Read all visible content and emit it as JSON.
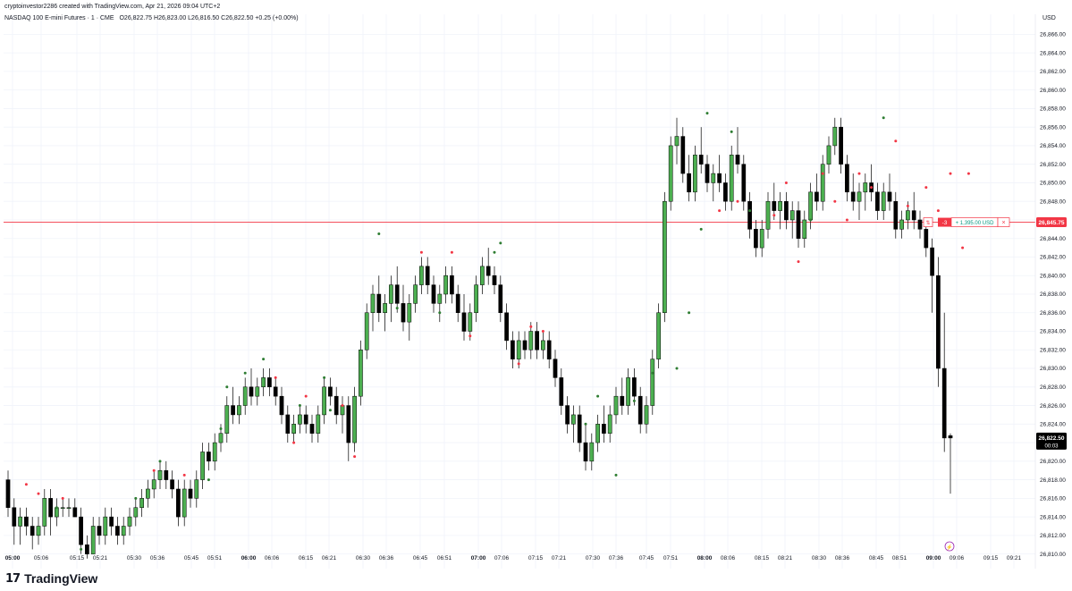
{
  "header": {
    "caption": "cryptoinvestor2286 created with TradingView.com, Apr 21, 2026 09:04 UTC+2",
    "instrument": "NASDAQ 100 E-mini Futures · 1 · CME",
    "ohlc": "O26,822.75 H26,823.00 L26,816.50 C26,822.50 +0.25 (+0.00%)",
    "currency": "USD"
  },
  "logo": {
    "mark": "17",
    "text": "TradingView"
  },
  "colors": {
    "up": "#4caf50",
    "down": "#000000",
    "level": "#f23645",
    "grid": "#f0f3fa",
    "marker_up": "#2e7d32",
    "marker_down": "#f23645"
  },
  "position": {
    "price": 26845.75,
    "price_label": "26,845.75",
    "qty": "-3",
    "lock_icon": "lock-icon",
    "pnl": "+ 1,395.00 USD",
    "close": "×"
  },
  "last_price": {
    "price": 26822.5,
    "label": "26,822.50",
    "countdown": "00:03"
  },
  "chart_data": {
    "type": "candlestick",
    "title": "NASDAQ 100 E-mini Futures · 1 · CME",
    "ylim": [
      26809,
      26867
    ],
    "y_ticks": [
      "26,810.00",
      "26,812.00",
      "26,814.00",
      "26,816.00",
      "26,818.00",
      "26,820.00",
      "26,822.00",
      "26,824.00",
      "26,826.00",
      "26,828.00",
      "26,830.00",
      "26,832.00",
      "26,834.00",
      "26,836.00",
      "26,838.00",
      "26,840.00",
      "26,842.00",
      "26,844.00",
      "26,846.00",
      "26,848.00",
      "26,850.00",
      "26,852.00",
      "26,854.00",
      "26,856.00",
      "26,858.00",
      "26,860.00",
      "26,862.00",
      "26,864.00",
      "26,866.00"
    ],
    "x_ticks": [
      "05:00",
      "05:06",
      "05:15",
      "05:21",
      "05:30",
      "05:36",
      "05:45",
      "05:51",
      "06:00",
      "06:06",
      "06:15",
      "06:21",
      "06:30",
      "06:36",
      "06:45",
      "06:51",
      "07:00",
      "07:06",
      "07:15",
      "07:21",
      "07:30",
      "07:36",
      "07:45",
      "07:51",
      "08:00",
      "08:06",
      "08:15",
      "08:21",
      "08:30",
      "08:36",
      "08:45",
      "08:51",
      "09:00",
      "09:06",
      "09:15",
      "09:21"
    ],
    "bold_x_ticks": [
      "05:00",
      "06:00",
      "07:00",
      "08:00",
      "09:00"
    ],
    "grid": true,
    "candles": [
      [
        26818,
        26819,
        26814,
        26815
      ],
      [
        26815,
        26816,
        26811,
        26813
      ],
      [
        26813,
        26815,
        26811,
        26814
      ],
      [
        26814,
        26815,
        26812,
        26813
      ],
      [
        26813,
        26814,
        26810.5,
        26812
      ],
      [
        26812,
        26814,
        26811,
        26813
      ],
      [
        26813,
        26817,
        26812,
        26816
      ],
      [
        26816,
        26817,
        26812,
        26814
      ],
      [
        26814,
        26816,
        26813,
        26815
      ],
      [
        26815,
        26816,
        26814,
        26815
      ],
      [
        26815,
        26816,
        26814,
        26815
      ],
      [
        26815,
        26816,
        26814,
        26814
      ],
      [
        26814,
        26815,
        26810,
        26811
      ],
      [
        26811,
        26812,
        26809.5,
        26810
      ],
      [
        26810,
        26814,
        26810,
        26813
      ],
      [
        26813,
        26814,
        26811,
        26812
      ],
      [
        26812,
        26815,
        26811,
        26814
      ],
      [
        26814,
        26815,
        26812,
        26813
      ],
      [
        26813,
        26814,
        26811,
        26812
      ],
      [
        26812,
        26814,
        26811,
        26813
      ],
      [
        26813,
        26815,
        26812,
        26814
      ],
      [
        26814,
        26816,
        26813,
        26815
      ],
      [
        26815,
        26817,
        26814,
        26816
      ],
      [
        26816,
        26818,
        26815,
        26817
      ],
      [
        26817,
        26819,
        26816,
        26818
      ],
      [
        26818,
        26820,
        26817,
        26819
      ],
      [
        26819,
        26820,
        26817,
        26818
      ],
      [
        26818,
        26819,
        26816,
        26817
      ],
      [
        26817,
        26818,
        26813,
        26814
      ],
      [
        26814,
        26818,
        26813,
        26817
      ],
      [
        26817,
        26818,
        26815,
        26816
      ],
      [
        26816,
        26819,
        26815,
        26818
      ],
      [
        26818,
        26822,
        26817,
        26821
      ],
      [
        26821,
        26822,
        26819,
        26820
      ],
      [
        26820,
        26823,
        26819,
        26822
      ],
      [
        26822,
        26824,
        26821,
        26823
      ],
      [
        26823,
        26827,
        26822,
        26826
      ],
      [
        26826,
        26828,
        26824,
        26825
      ],
      [
        26825,
        26827,
        26824,
        26826
      ],
      [
        26826,
        26829,
        26825,
        26828
      ],
      [
        26828,
        26830,
        26826,
        26827
      ],
      [
        26827,
        26829,
        26826,
        26828
      ],
      [
        26828,
        26830,
        26827,
        26829
      ],
      [
        26829,
        26830,
        26827,
        26828
      ],
      [
        26828,
        26829,
        26826,
        26827
      ],
      [
        26827,
        26828,
        26824,
        26825
      ],
      [
        26825,
        26826,
        26822,
        26823
      ],
      [
        26823,
        26825,
        26822,
        26824
      ],
      [
        26824,
        26826,
        26823,
        26825
      ],
      [
        26825,
        26826,
        26823,
        26824
      ],
      [
        26824,
        26825,
        26822,
        26823
      ],
      [
        26823,
        26826,
        26822,
        26825
      ],
      [
        26825,
        26829,
        26824,
        26828
      ],
      [
        26828,
        26829,
        26826,
        26827
      ],
      [
        26827,
        26828,
        26824,
        26825
      ],
      [
        26825,
        26827,
        26823,
        26826
      ],
      [
        26826,
        26827,
        26820,
        26822
      ],
      [
        26822,
        26828,
        26821,
        26827
      ],
      [
        26827,
        26833,
        26826,
        26832
      ],
      [
        26832,
        26837,
        26831,
        26836
      ],
      [
        26836,
        26839,
        26834,
        26838
      ],
      [
        26838,
        26840,
        26835,
        26836
      ],
      [
        26836,
        26838,
        26834,
        26837
      ],
      [
        26837,
        26840,
        26835,
        26839
      ],
      [
        26839,
        26841,
        26836,
        26837
      ],
      [
        26837,
        26839,
        26834,
        26835
      ],
      [
        26835,
        26838,
        26833,
        26837
      ],
      [
        26837,
        26840,
        26836,
        26839
      ],
      [
        26839,
        26842,
        26838,
        26841
      ],
      [
        26841,
        26842,
        26838,
        26839
      ],
      [
        26839,
        26840,
        26836,
        26837
      ],
      [
        26837,
        26839,
        26835,
        26838
      ],
      [
        26838,
        26841,
        26837,
        26840
      ],
      [
        26840,
        26841,
        26837,
        26838
      ],
      [
        26838,
        26839,
        26835,
        26836
      ],
      [
        26836,
        26838,
        26833,
        26834
      ],
      [
        26834,
        26837,
        26833,
        26836
      ],
      [
        26836,
        26840,
        26835,
        26839
      ],
      [
        26839,
        26842,
        26838,
        26841
      ],
      [
        26841,
        26843,
        26839,
        26840
      ],
      [
        26840,
        26841,
        26838,
        26839
      ],
      [
        26839,
        26840,
        26835,
        26836
      ],
      [
        26836,
        26837,
        26832,
        26833
      ],
      [
        26833,
        26834,
        26830,
        26831
      ],
      [
        26831,
        26834,
        26830,
        26833
      ],
      [
        26833,
        26834,
        26831,
        26832
      ],
      [
        26832,
        26835,
        26831,
        26834
      ],
      [
        26834,
        26835,
        26831,
        26832
      ],
      [
        26832,
        26834,
        26831,
        26833
      ],
      [
        26833,
        26834,
        26830,
        26831
      ],
      [
        26831,
        26832,
        26828,
        26829
      ],
      [
        26829,
        26830,
        26825,
        26826
      ],
      [
        26826,
        26827,
        26823,
        26824
      ],
      [
        26824,
        26826,
        26822,
        26825
      ],
      [
        26825,
        26826,
        26821,
        26822
      ],
      [
        26822,
        26824,
        26819,
        26820
      ],
      [
        26820,
        26823,
        26819,
        26822
      ],
      [
        26822,
        26825,
        26821,
        26824
      ],
      [
        26824,
        26826,
        26822,
        26823
      ],
      [
        26823,
        26826,
        26822,
        26825
      ],
      [
        26825,
        26828,
        26824,
        26827
      ],
      [
        26827,
        26829,
        26825,
        26826
      ],
      [
        26826,
        26830,
        26825,
        26829
      ],
      [
        26829,
        26830,
        26826,
        26827
      ],
      [
        26827,
        26828,
        26823,
        26824
      ],
      [
        26824,
        26827,
        26823,
        26826
      ],
      [
        26826,
        26832,
        26825,
        26831
      ],
      [
        26831,
        26837,
        26830,
        26836
      ],
      [
        26836,
        26849,
        26835,
        26848
      ],
      [
        26848,
        26855,
        26847,
        26854
      ],
      [
        26854,
        26857,
        26852,
        26855
      ],
      [
        26855,
        26856,
        26850,
        26851
      ],
      [
        26851,
        26853,
        26848,
        26849
      ],
      [
        26849,
        26854,
        26848,
        26853
      ],
      [
        26853,
        26856,
        26851,
        26852
      ],
      [
        26852,
        26853,
        26849,
        26850
      ],
      [
        26850,
        26852,
        26848,
        26851
      ],
      [
        26851,
        26853,
        26849,
        26850
      ],
      [
        26850,
        26851,
        26847,
        26848
      ],
      [
        26848,
        26854,
        26847,
        26853
      ],
      [
        26853,
        26856,
        26851,
        26852
      ],
      [
        26852,
        26853,
        26847,
        26848
      ],
      [
        26848,
        26849,
        26844,
        26845
      ],
      [
        26845,
        26846,
        26842,
        26843
      ],
      [
        26843,
        26846,
        26842,
        26845
      ],
      [
        26845,
        26849,
        26844,
        26848
      ],
      [
        26848,
        26850,
        26846,
        26847
      ],
      [
        26847,
        26849,
        26845,
        26848
      ],
      [
        26848,
        26849,
        26845,
        26846
      ],
      [
        26846,
        26848,
        26844,
        26847
      ],
      [
        26847,
        26848,
        26843,
        26844
      ],
      [
        26844,
        26847,
        26843,
        26846
      ],
      [
        26846,
        26850,
        26845,
        26849
      ],
      [
        26849,
        26851,
        26847,
        26848
      ],
      [
        26848,
        26853,
        26847,
        26852
      ],
      [
        26852,
        26855,
        26851,
        26854
      ],
      [
        26854,
        26857,
        26853,
        26856
      ],
      [
        26856,
        26857,
        26851,
        26852
      ],
      [
        26852,
        26853,
        26848,
        26849
      ],
      [
        26849,
        26851,
        26847,
        26848
      ],
      [
        26848,
        26850,
        26846,
        26849
      ],
      [
        26849,
        26851,
        26847,
        26850
      ],
      [
        26850,
        26852,
        26848,
        26849
      ],
      [
        26849,
        26850,
        26846,
        26847
      ],
      [
        26847,
        26850,
        26846,
        26849
      ],
      [
        26849,
        26851,
        26847,
        26848
      ],
      [
        26848,
        26849,
        26844,
        26845
      ],
      [
        26845,
        26847,
        26844,
        26846
      ],
      [
        26846,
        26848,
        26845,
        26847
      ],
      [
        26847,
        26849,
        26845,
        26846
      ],
      [
        26846,
        26847,
        26844,
        26845
      ],
      [
        26845,
        26846,
        26842,
        26843
      ],
      [
        26843,
        26844,
        26836,
        26840
      ],
      [
        26840,
        26842,
        26828,
        26830
      ],
      [
        26830,
        26836,
        26821,
        26822.5
      ],
      [
        26822.75,
        26823,
        26816.5,
        26822.5
      ]
    ],
    "markers": [
      [
        3,
        26817.5,
        "d"
      ],
      [
        5,
        26816.5,
        "d"
      ],
      [
        8,
        26815,
        "u"
      ],
      [
        9,
        26816,
        "d"
      ],
      [
        12,
        26810.5,
        "u"
      ],
      [
        21,
        26816,
        "u"
      ],
      [
        24,
        26819,
        "d"
      ],
      [
        25,
        26820,
        "u"
      ],
      [
        29,
        26818.5,
        "d"
      ],
      [
        33,
        26818,
        "u"
      ],
      [
        35,
        26823.5,
        "u"
      ],
      [
        36,
        26828,
        "u"
      ],
      [
        39,
        26829.5,
        "u"
      ],
      [
        42,
        26831,
        "u"
      ],
      [
        44,
        26829,
        "d"
      ],
      [
        47,
        26822,
        "d"
      ],
      [
        48,
        26826,
        "u"
      ],
      [
        49,
        26827,
        "d"
      ],
      [
        52,
        26829,
        "u"
      ],
      [
        53,
        26825.5,
        "u"
      ],
      [
        55,
        26826,
        "d"
      ],
      [
        57,
        26820.5,
        "d"
      ],
      [
        61,
        26844.5,
        "u"
      ],
      [
        64,
        26836.5,
        "u"
      ],
      [
        68,
        26842.5,
        "d"
      ],
      [
        71,
        26836,
        "u"
      ],
      [
        73,
        26842.5,
        "d"
      ],
      [
        76,
        26833.5,
        "d"
      ],
      [
        80,
        26842.5,
        "u"
      ],
      [
        81,
        26843.5,
        "u"
      ],
      [
        84,
        26830.5,
        "d"
      ],
      [
        86,
        26834.5,
        "d"
      ],
      [
        88,
        26834,
        "d"
      ],
      [
        95,
        26824,
        "u"
      ],
      [
        97,
        26827,
        "u"
      ],
      [
        100,
        26818.5,
        "u"
      ],
      [
        103,
        26826.5,
        "u"
      ],
      [
        106,
        26829.5,
        "u"
      ],
      [
        110,
        26830,
        "u"
      ],
      [
        112,
        26836,
        "u"
      ],
      [
        114,
        26845,
        "u"
      ],
      [
        115,
        26857.5,
        "u"
      ],
      [
        117,
        26847,
        "d"
      ],
      [
        119,
        26855.5,
        "u"
      ],
      [
        120,
        26848,
        "d"
      ],
      [
        122,
        26847,
        "u"
      ],
      [
        126,
        26846.5,
        "d"
      ],
      [
        128,
        26850,
        "d"
      ],
      [
        130,
        26841.5,
        "d"
      ],
      [
        132,
        26846,
        "u"
      ],
      [
        134,
        26851,
        "d"
      ],
      [
        136,
        26848,
        "d"
      ],
      [
        138,
        26846,
        "d"
      ],
      [
        140,
        26851,
        "d"
      ],
      [
        142,
        26849.5,
        "d"
      ],
      [
        144,
        26857,
        "u"
      ],
      [
        146,
        26854.5,
        "d"
      ],
      [
        148,
        26847.5,
        "d"
      ],
      [
        151,
        26849.5,
        "d"
      ],
      [
        153,
        26847,
        "d"
      ],
      [
        155,
        26851,
        "d"
      ],
      [
        157,
        26843,
        "d"
      ],
      [
        158,
        26851,
        "d"
      ]
    ]
  }
}
